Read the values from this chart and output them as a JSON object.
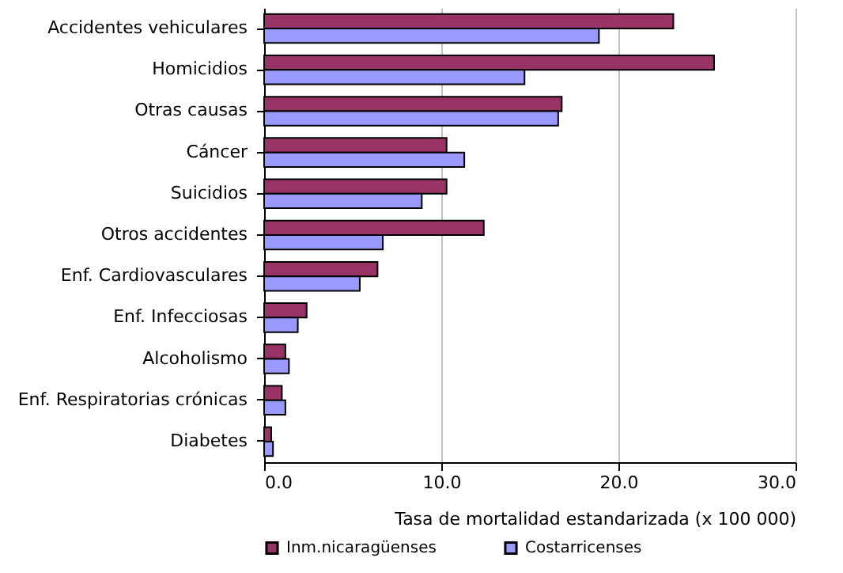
{
  "chart_data": {
    "type": "bar",
    "orientation": "horizontal",
    "xlabel": "Tasa de mortalidad estandarizada (x 100 000)",
    "categories": [
      "Accidentes vehiculares",
      "Homicidios",
      "Otras causas",
      "Cáncer",
      "Suicidios",
      "Otros accidentes",
      "Enf. Cardiovasculares",
      "Enf. Infecciosas",
      "Alcoholismo",
      "Enf. Respiratorias crónicas",
      "Diabetes"
    ],
    "series": [
      {
        "name": "Inm.nicaragüenses",
        "color": "#993366",
        "values": [
          23.1,
          25.4,
          16.8,
          10.3,
          10.3,
          12.4,
          6.4,
          2.4,
          1.2,
          1.0,
          0.4
        ]
      },
      {
        "name": "Costarricenses",
        "color": "#9999ff",
        "values": [
          18.9,
          14.7,
          16.6,
          11.3,
          8.9,
          6.7,
          5.4,
          1.9,
          1.4,
          1.2,
          0.5
        ]
      }
    ],
    "xlim": [
      0,
      30
    ],
    "xticks": [
      {
        "value": 0,
        "label": "0.0"
      },
      {
        "value": 10,
        "label": "10.0"
      },
      {
        "value": 20,
        "label": "20.0"
      },
      {
        "value": 30,
        "label": "30.0"
      }
    ],
    "grid": "x",
    "legend": "bottom"
  }
}
